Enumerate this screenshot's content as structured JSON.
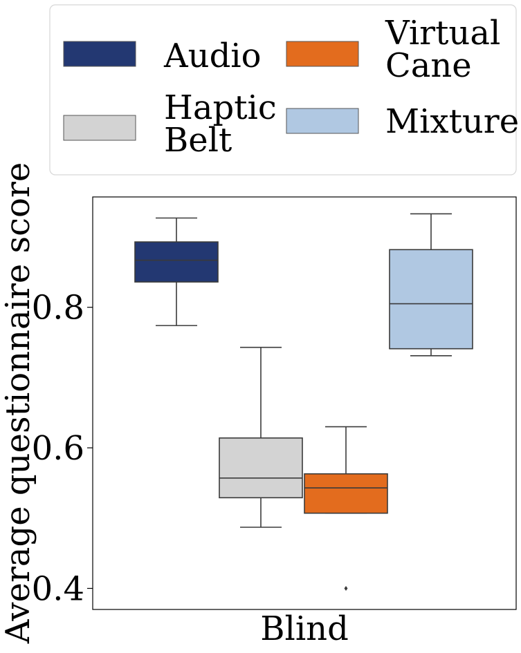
{
  "chart_data": {
    "type": "box",
    "title": "",
    "xlabel": "Blind",
    "ylabel": "Average questionnaire score",
    "ylim": [
      0.37,
      0.957
    ],
    "yticks": [
      0.4,
      0.6,
      0.8
    ],
    "ytick_labels": [
      "0.4",
      "0.6",
      "0.8"
    ],
    "category": "Blind",
    "grid": false,
    "legend_position": "top",
    "series": [
      {
        "name": "Audio",
        "color": "#233872",
        "whisker_low": 0.774,
        "q1": 0.836,
        "median": 0.867,
        "q3": 0.893,
        "whisker_high": 0.927,
        "outliers": []
      },
      {
        "name": "Haptic Belt",
        "color": "#d3d3d3",
        "whisker_low": 0.487,
        "q1": 0.529,
        "median": 0.557,
        "q3": 0.614,
        "whisker_high": 0.743,
        "outliers": []
      },
      {
        "name": "Virtual Cane",
        "color": "#e36c1e",
        "whisker_low": 0.507,
        "q1": 0.507,
        "median": 0.543,
        "q3": 0.563,
        "whisker_high": 0.63,
        "outliers": [
          0.4
        ]
      },
      {
        "name": "Mixture",
        "color": "#b0c8e2",
        "whisker_low": 0.731,
        "q1": 0.741,
        "median": 0.805,
        "q3": 0.882,
        "whisker_high": 0.933,
        "outliers": []
      }
    ],
    "legend": [
      {
        "lines": [
          "Audio"
        ],
        "color": "#233872"
      },
      {
        "lines": [
          "Virtual",
          "Cane"
        ],
        "color": "#e36c1e"
      },
      {
        "lines": [
          "Haptic",
          "Belt"
        ],
        "color": "#d3d3d3"
      },
      {
        "lines": [
          "Mixture"
        ],
        "color": "#b0c8e2"
      }
    ]
  }
}
